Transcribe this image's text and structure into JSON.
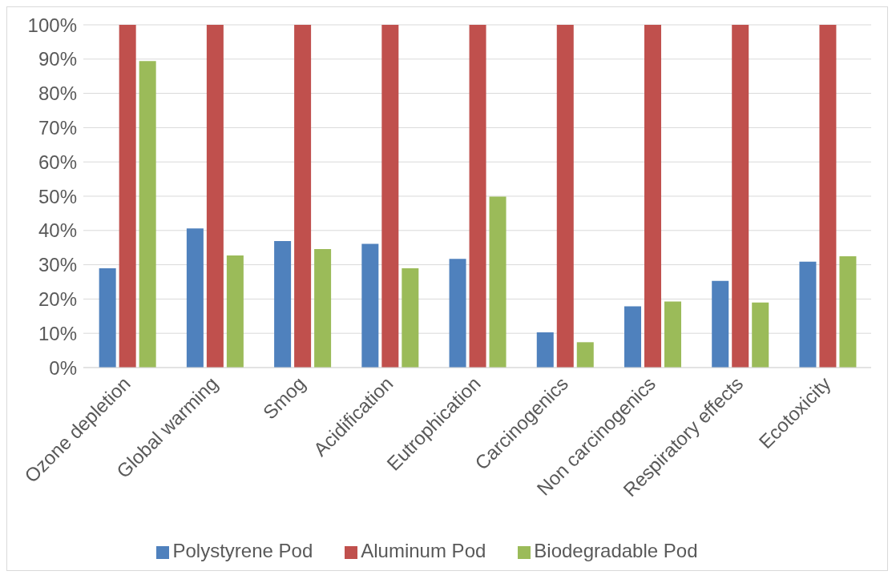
{
  "chart_data": {
    "type": "bar",
    "categories": [
      "Ozone depletion",
      "Global warming",
      "Smog",
      "Acidification",
      "Eutrophication",
      "Carcinogenics",
      "Non carcinogenics",
      "Respiratory effects",
      "Ecotoxicity"
    ],
    "series": [
      {
        "name": "Polystyrene Pod",
        "color": "#4f81bd",
        "values": [
          29,
          40.6,
          36.9,
          36.1,
          31.7,
          10.3,
          17.9,
          25.3,
          30.9
        ]
      },
      {
        "name": "Aluminum Pod",
        "color": "#c0504d",
        "values": [
          100,
          100,
          100,
          100,
          100,
          100,
          100,
          100,
          100
        ]
      },
      {
        "name": "Biodegradable Pod",
        "color": "#9bbb59",
        "values": [
          89.4,
          32.7,
          34.6,
          29,
          49.9,
          7.4,
          19.3,
          19,
          32.5
        ]
      }
    ],
    "ylim": [
      0,
      100
    ],
    "yticks": [
      {
        "value": 0,
        "label": "0%"
      },
      {
        "value": 10,
        "label": "10%"
      },
      {
        "value": 20,
        "label": "20%"
      },
      {
        "value": 30,
        "label": "30%"
      },
      {
        "value": 40,
        "label": "40%"
      },
      {
        "value": 50,
        "label": "50%"
      },
      {
        "value": 60,
        "label": "60%"
      },
      {
        "value": 70,
        "label": "70%"
      },
      {
        "value": 80,
        "label": "80%"
      },
      {
        "value": 90,
        "label": "90%"
      },
      {
        "value": 100,
        "label": "100%"
      }
    ],
    "grid": "y",
    "legend": "bottom"
  }
}
